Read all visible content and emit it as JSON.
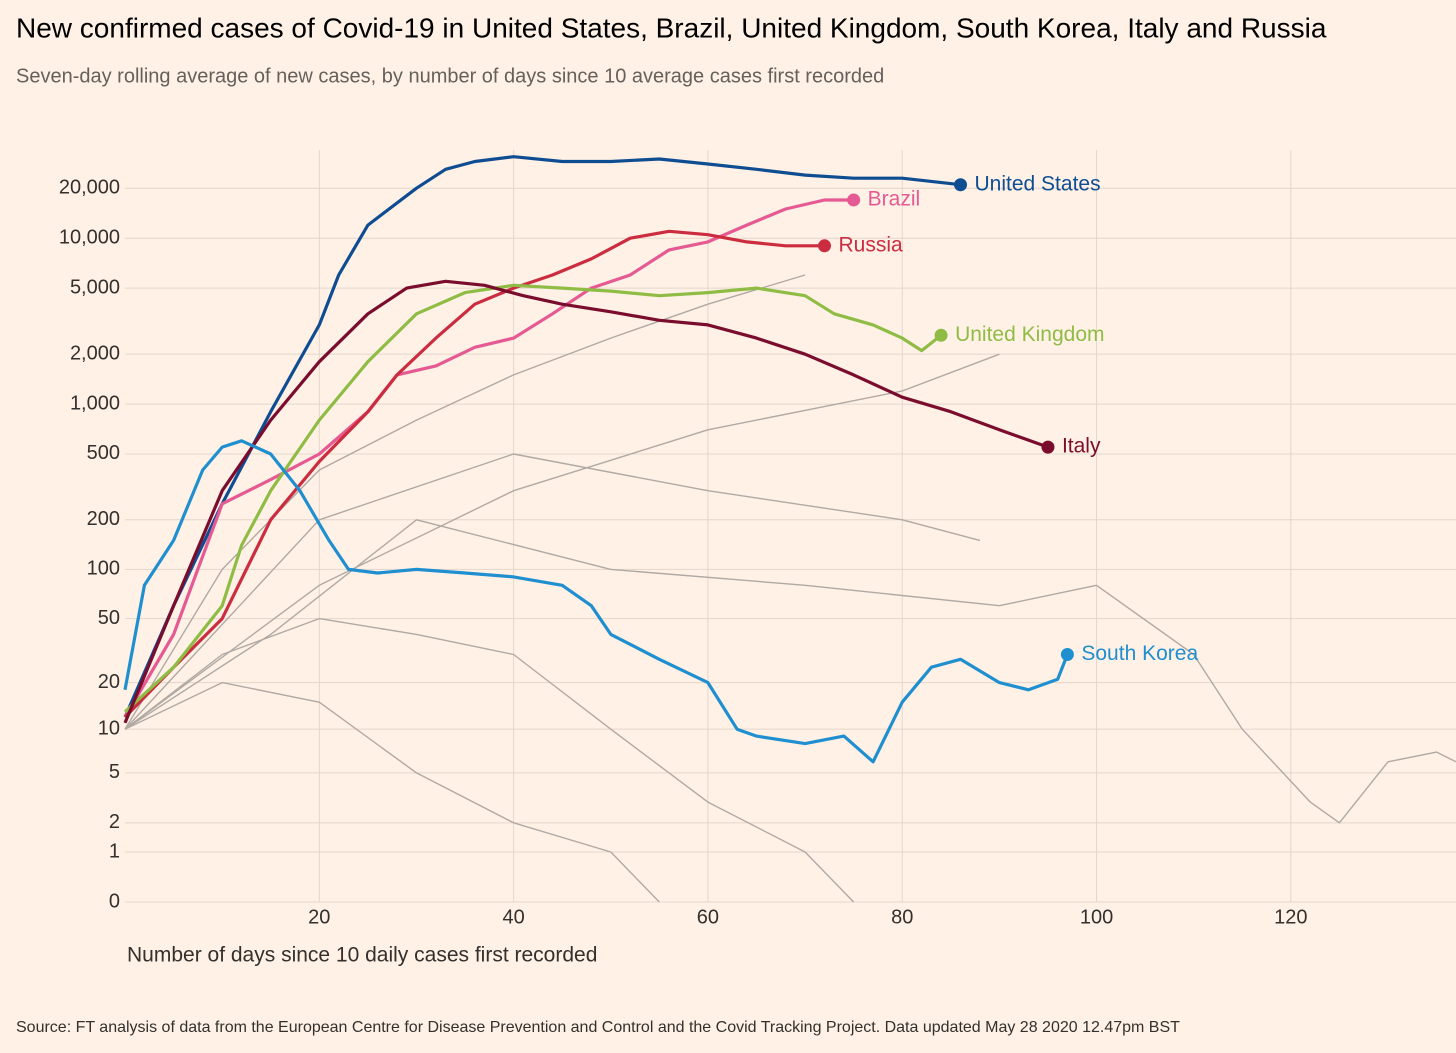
{
  "chart_data": {
    "type": "line",
    "title": "New confirmed cases of Covid-19 in United States, Brazil, United Kingdom, South Korea, Italy and Russia",
    "subtitle": "Seven-day rolling average of new cases, by number of days since 10 average cases first recorded",
    "x_label": "Number of days since 10 daily cases first recorded",
    "source": "Source: FT analysis of data from the European Centre for Disease Prevention and Control and the Covid Tracking Project. Data updated May 28 2020 12.47pm BST",
    "y_scale": "log1p",
    "grid": true,
    "xlim": [
      0,
      137
    ],
    "xticks": [
      20,
      40,
      60,
      80,
      100,
      120
    ],
    "ylim": [
      0,
      34000
    ],
    "yticks": [
      0,
      1,
      2,
      5,
      10,
      20,
      50,
      100,
      200,
      500,
      {
        "value": 1000,
        "label": "1,000"
      },
      {
        "value": 2000,
        "label": "2,000"
      },
      {
        "value": 5000,
        "label": "5,000"
      },
      {
        "value": 10000,
        "label": "10,000"
      },
      {
        "value": 20000,
        "label": "20,000"
      }
    ],
    "background_series": [
      {
        "color": "#b0a9a4",
        "x": [
          0,
          10,
          20,
          30,
          40,
          50,
          60,
          70,
          75
        ],
        "values": [
          10,
          30,
          50,
          40,
          30,
          10,
          3,
          1,
          0
        ]
      },
      {
        "color": "#b0a9a4",
        "x": [
          0,
          10,
          20,
          30,
          40,
          50,
          60,
          70
        ],
        "values": [
          10,
          100,
          400,
          800,
          1500,
          2500,
          4000,
          6000
        ]
      },
      {
        "color": "#b0a9a4",
        "x": [
          0,
          20,
          40,
          60,
          80,
          90
        ],
        "values": [
          10,
          80,
          300,
          700,
          1200,
          2000
        ]
      },
      {
        "color": "#b0a9a4",
        "x": [
          0,
          15,
          30,
          50,
          70,
          90,
          100,
          110,
          115,
          122,
          125,
          130,
          135,
          137
        ],
        "values": [
          10,
          40,
          200,
          100,
          80,
          60,
          80,
          30,
          10,
          3,
          2,
          6,
          7,
          6
        ]
      },
      {
        "color": "#b0a9a4",
        "x": [
          0,
          10,
          20,
          30,
          40,
          50,
          55
        ],
        "values": [
          10,
          20,
          15,
          5,
          2,
          1,
          0
        ]
      },
      {
        "color": "#b0a9a4",
        "x": [
          0,
          20,
          40,
          60,
          80,
          88
        ],
        "values": [
          10,
          200,
          500,
          300,
          200,
          150
        ]
      }
    ],
    "series": [
      {
        "name": "United States",
        "color": "#0f4d92",
        "x": [
          0,
          5,
          10,
          15,
          20,
          22,
          25,
          30,
          33,
          36,
          40,
          45,
          50,
          55,
          60,
          65,
          70,
          75,
          80,
          86
        ],
        "values": [
          12,
          60,
          250,
          900,
          3000,
          6000,
          12000,
          20000,
          26000,
          29000,
          31000,
          29000,
          29000,
          30000,
          28000,
          26000,
          24000,
          23000,
          23000,
          21000
        ]
      },
      {
        "name": "Brazil",
        "color": "#e55a93",
        "x": [
          0,
          5,
          10,
          15,
          20,
          25,
          28,
          32,
          36,
          40,
          44,
          48,
          52,
          56,
          60,
          64,
          68,
          72,
          75
        ],
        "values": [
          12,
          40,
          250,
          350,
          500,
          900,
          1500,
          1700,
          2200,
          2500,
          3500,
          5000,
          6000,
          8500,
          9500,
          12000,
          15000,
          17000,
          17000
        ]
      },
      {
        "name": "Russia",
        "color": "#cc2c3f",
        "x": [
          0,
          5,
          10,
          15,
          20,
          25,
          28,
          32,
          36,
          40,
          44,
          48,
          52,
          56,
          60,
          64,
          68,
          72
        ],
        "values": [
          12,
          25,
          50,
          200,
          450,
          900,
          1500,
          2500,
          4000,
          5000,
          6000,
          7500,
          10000,
          11000,
          10500,
          9500,
          9000,
          9000
        ]
      },
      {
        "name": "United Kingdom",
        "color": "#8fbc45",
        "x": [
          0,
          5,
          10,
          12,
          15,
          20,
          25,
          30,
          35,
          40,
          45,
          50,
          55,
          60,
          65,
          70,
          73,
          77,
          80,
          82,
          84
        ],
        "values": [
          13,
          25,
          60,
          140,
          300,
          800,
          1800,
          3500,
          4700,
          5200,
          5000,
          4800,
          4500,
          4700,
          5000,
          4500,
          3500,
          3000,
          2500,
          2100,
          2600
        ]
      },
      {
        "name": "Italy",
        "color": "#7a0d2e",
        "x": [
          0,
          5,
          10,
          15,
          20,
          25,
          29,
          33,
          37,
          41,
          45,
          50,
          55,
          60,
          65,
          70,
          75,
          80,
          85,
          90,
          95
        ],
        "values": [
          11,
          60,
          300,
          800,
          1800,
          3500,
          5000,
          5500,
          5200,
          4500,
          4000,
          3600,
          3200,
          3000,
          2500,
          2000,
          1500,
          1100,
          900,
          700,
          550
        ]
      },
      {
        "name": "South Korea",
        "color": "#1f8fd0",
        "x": [
          0,
          2,
          5,
          8,
          10,
          12,
          15,
          18,
          21,
          23,
          26,
          30,
          35,
          40,
          45,
          48,
          50,
          55,
          60,
          63,
          65,
          70,
          74,
          77,
          80,
          83,
          86,
          90,
          93,
          96,
          97
        ],
        "values": [
          18,
          80,
          150,
          400,
          550,
          600,
          500,
          300,
          150,
          100,
          95,
          100,
          95,
          90,
          80,
          60,
          40,
          28,
          20,
          10,
          9,
          8,
          9,
          6,
          15,
          25,
          28,
          20,
          18,
          21,
          30
        ]
      }
    ]
  }
}
